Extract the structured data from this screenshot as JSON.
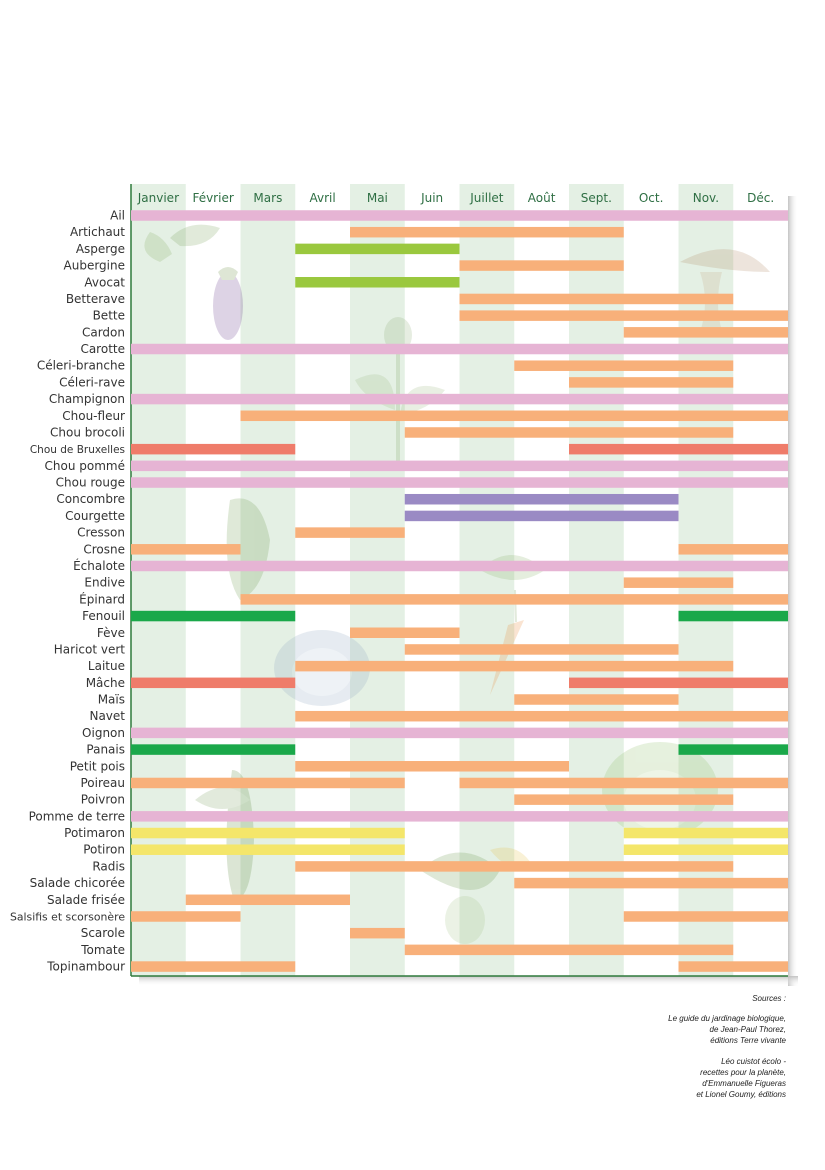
{
  "chart_data": {
    "type": "bar",
    "subtype": "gantt",
    "title": "",
    "months": [
      "Janvier",
      "Février",
      "Mars",
      "Avril",
      "Mai",
      "Juin",
      "Juillet",
      "Août",
      "Sept.",
      "Oct.",
      "Nov.",
      "Déc."
    ],
    "colors": {
      "pink": "#e6b4d4",
      "orange": "#f8b07a",
      "lime": "#9ac83e",
      "purple": "#9a8ac4",
      "red": "#ef7c6a",
      "green": "#1aa84a",
      "yellow": "#f4e66a",
      "axis": "#2f7a3c",
      "month_label": "#2f6f44",
      "month_band": "#e4f0e4",
      "row_label": "#333333"
    },
    "rows": [
      {
        "name": "Ail",
        "bars": [
          {
            "start": 0,
            "end": 12,
            "color": "pink"
          }
        ]
      },
      {
        "name": "Artichaut",
        "bars": [
          {
            "start": 4,
            "end": 9,
            "color": "orange"
          }
        ]
      },
      {
        "name": "Asperge",
        "bars": [
          {
            "start": 3,
            "end": 6,
            "color": "lime"
          }
        ]
      },
      {
        "name": "Aubergine",
        "bars": [
          {
            "start": 6,
            "end": 9,
            "color": "orange"
          }
        ]
      },
      {
        "name": "Avocat",
        "bars": [
          {
            "start": 3,
            "end": 6,
            "color": "lime"
          }
        ]
      },
      {
        "name": "Betterave",
        "bars": [
          {
            "start": 6,
            "end": 11,
            "color": "orange"
          }
        ]
      },
      {
        "name": "Bette",
        "bars": [
          {
            "start": 6,
            "end": 12,
            "color": "orange"
          }
        ]
      },
      {
        "name": "Cardon",
        "bars": [
          {
            "start": 9,
            "end": 12,
            "color": "orange"
          }
        ]
      },
      {
        "name": "Carotte",
        "bars": [
          {
            "start": 0,
            "end": 12,
            "color": "pink"
          }
        ]
      },
      {
        "name": "Céleri-branche",
        "bars": [
          {
            "start": 7,
            "end": 11,
            "color": "orange"
          }
        ]
      },
      {
        "name": "Céleri-rave",
        "bars": [
          {
            "start": 8,
            "end": 11,
            "color": "orange"
          }
        ]
      },
      {
        "name": "Champignon",
        "bars": [
          {
            "start": 0,
            "end": 12,
            "color": "pink"
          }
        ]
      },
      {
        "name": "Chou-fleur",
        "bars": [
          {
            "start": 2,
            "end": 12,
            "color": "orange"
          }
        ]
      },
      {
        "name": "Chou brocoli",
        "bars": [
          {
            "start": 5,
            "end": 11,
            "color": "orange"
          }
        ]
      },
      {
        "name": "Chou de Bruxelles",
        "bars": [
          {
            "start": 0,
            "end": 3,
            "color": "red"
          },
          {
            "start": 8,
            "end": 12,
            "color": "red"
          }
        ]
      },
      {
        "name": "Chou pommé",
        "bars": [
          {
            "start": 0,
            "end": 12,
            "color": "pink"
          }
        ]
      },
      {
        "name": "Chou rouge",
        "bars": [
          {
            "start": 0,
            "end": 12,
            "color": "pink"
          }
        ]
      },
      {
        "name": "Concombre",
        "bars": [
          {
            "start": 5,
            "end": 10,
            "color": "purple"
          }
        ]
      },
      {
        "name": "Courgette",
        "bars": [
          {
            "start": 5,
            "end": 10,
            "color": "purple"
          }
        ]
      },
      {
        "name": "Cresson",
        "bars": [
          {
            "start": 3,
            "end": 5,
            "color": "orange"
          }
        ]
      },
      {
        "name": "Crosne",
        "bars": [
          {
            "start": 0,
            "end": 2,
            "color": "orange"
          },
          {
            "start": 10,
            "end": 12,
            "color": "orange"
          }
        ]
      },
      {
        "name": "Échalote",
        "bars": [
          {
            "start": 0,
            "end": 12,
            "color": "pink"
          }
        ]
      },
      {
        "name": "Endive",
        "bars": [
          {
            "start": 9,
            "end": 11,
            "color": "orange"
          }
        ]
      },
      {
        "name": "Épinard",
        "bars": [
          {
            "start": 2,
            "end": 12,
            "color": "orange"
          }
        ]
      },
      {
        "name": "Fenouil",
        "bars": [
          {
            "start": 0,
            "end": 3,
            "color": "green"
          },
          {
            "start": 10,
            "end": 12,
            "color": "green"
          }
        ]
      },
      {
        "name": "Fève",
        "bars": [
          {
            "start": 4,
            "end": 6,
            "color": "orange"
          }
        ]
      },
      {
        "name": "Haricot vert",
        "bars": [
          {
            "start": 5,
            "end": 10,
            "color": "orange"
          }
        ]
      },
      {
        "name": "Laitue",
        "bars": [
          {
            "start": 3,
            "end": 11,
            "color": "orange"
          }
        ]
      },
      {
        "name": "Mâche",
        "bars": [
          {
            "start": 0,
            "end": 3,
            "color": "red"
          },
          {
            "start": 8,
            "end": 12,
            "color": "red"
          }
        ]
      },
      {
        "name": "Maïs",
        "bars": [
          {
            "start": 7,
            "end": 10,
            "color": "orange"
          }
        ]
      },
      {
        "name": "Navet",
        "bars": [
          {
            "start": 3,
            "end": 12,
            "color": "orange"
          }
        ]
      },
      {
        "name": "Oignon",
        "bars": [
          {
            "start": 0,
            "end": 12,
            "color": "pink"
          }
        ]
      },
      {
        "name": "Panais",
        "bars": [
          {
            "start": 0,
            "end": 3,
            "color": "green"
          },
          {
            "start": 10,
            "end": 12,
            "color": "green"
          }
        ]
      },
      {
        "name": "Petit pois",
        "bars": [
          {
            "start": 3,
            "end": 8,
            "color": "orange"
          }
        ]
      },
      {
        "name": "Poireau",
        "bars": [
          {
            "start": 0,
            "end": 5,
            "color": "orange"
          },
          {
            "start": 6,
            "end": 12,
            "color": "orange"
          }
        ]
      },
      {
        "name": "Poivron",
        "bars": [
          {
            "start": 7,
            "end": 11,
            "color": "orange"
          }
        ]
      },
      {
        "name": "Pomme de terre",
        "bars": [
          {
            "start": 0,
            "end": 12,
            "color": "pink"
          }
        ]
      },
      {
        "name": "Potimaron",
        "bars": [
          {
            "start": 0,
            "end": 5,
            "color": "yellow"
          },
          {
            "start": 9,
            "end": 12,
            "color": "yellow"
          }
        ]
      },
      {
        "name": "Potiron",
        "bars": [
          {
            "start": 0,
            "end": 5,
            "color": "yellow"
          },
          {
            "start": 9,
            "end": 12,
            "color": "yellow"
          }
        ]
      },
      {
        "name": "Radis",
        "bars": [
          {
            "start": 3,
            "end": 11,
            "color": "orange"
          }
        ]
      },
      {
        "name": "Salade chicorée",
        "bars": [
          {
            "start": 7,
            "end": 12,
            "color": "orange"
          }
        ]
      },
      {
        "name": "Salade frisée",
        "bars": [
          {
            "start": 1,
            "end": 4,
            "color": "orange"
          }
        ]
      },
      {
        "name": "Salsifis et scorsonère",
        "bars": [
          {
            "start": 0,
            "end": 2,
            "color": "orange"
          },
          {
            "start": 9,
            "end": 12,
            "color": "orange"
          }
        ]
      },
      {
        "name": "Scarole",
        "bars": [
          {
            "start": 4,
            "end": 5,
            "color": "orange"
          }
        ]
      },
      {
        "name": "Tomate",
        "bars": [
          {
            "start": 5,
            "end": 11,
            "color": "orange"
          }
        ]
      },
      {
        "name": "Topinambour",
        "bars": [
          {
            "start": 0,
            "end": 3,
            "color": "orange"
          },
          {
            "start": 10,
            "end": 12,
            "color": "orange"
          }
        ]
      }
    ]
  },
  "sources": {
    "title": "Sources :",
    "ref1": {
      "line1": "Le guide du jardinage biologique,",
      "line2": "de Jean-Paul Thorez,",
      "line3": "éditions Terre vivante"
    },
    "ref2": {
      "line1": "Léo cuistot écolo -",
      "line2": "recettes pour la planète,",
      "line3": "d'Emmanuelle Figueras",
      "line4": "et Lionel Goumy, éditions"
    }
  }
}
